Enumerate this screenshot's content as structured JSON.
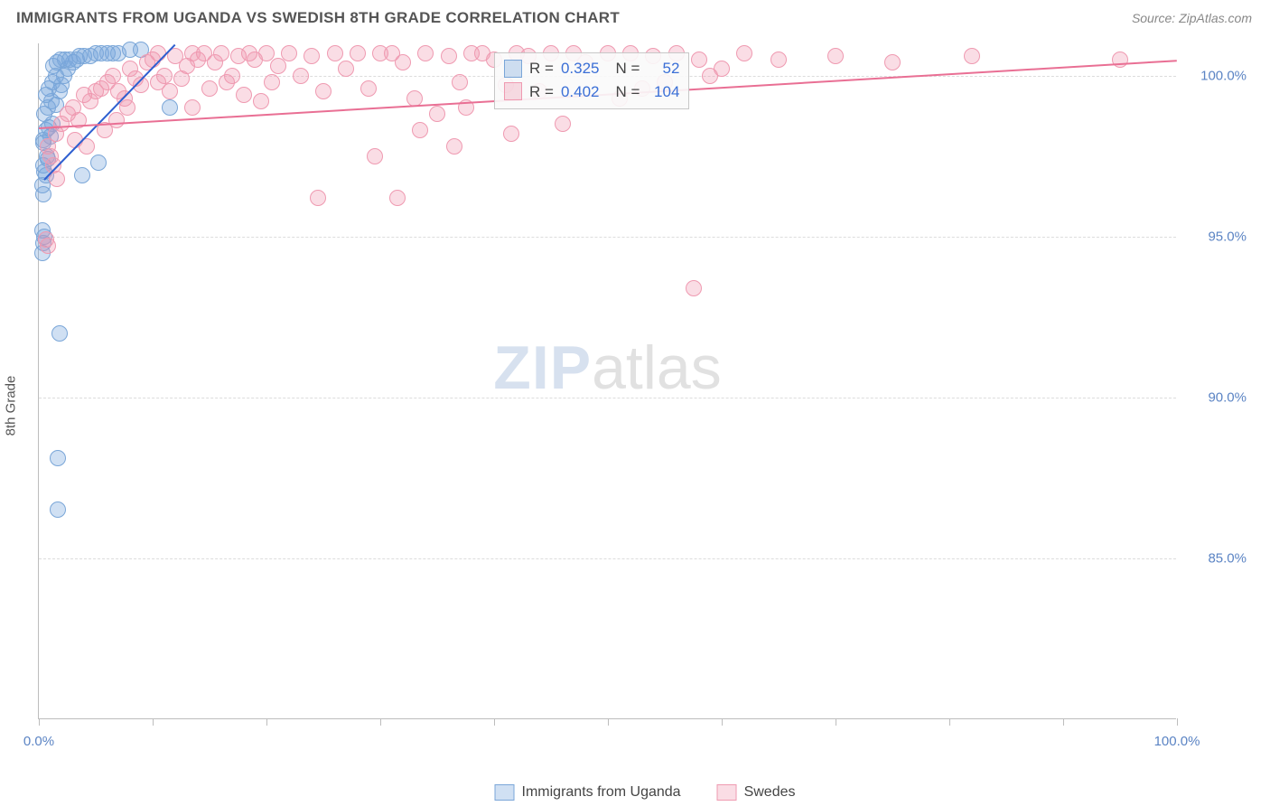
{
  "header": {
    "title": "IMMIGRANTS FROM UGANDA VS SWEDISH 8TH GRADE CORRELATION CHART",
    "source": "Source: ZipAtlas.com"
  },
  "watermark": {
    "part1": "ZIP",
    "part2": "atlas"
  },
  "chart": {
    "type": "scatter",
    "background_color": "#ffffff",
    "grid_color": "#dcdcdc",
    "axis_color": "#bdbdbd",
    "yaxis_title": "8th Grade",
    "label_fontsize": 15,
    "xlim": [
      0,
      100
    ],
    "ylim": [
      80,
      101
    ],
    "x_ticks": [
      0,
      10,
      20,
      30,
      40,
      50,
      60,
      70,
      80,
      90,
      100
    ],
    "x_tick_labels": {
      "0": "0.0%",
      "100": "100.0%"
    },
    "y_ticks": [
      85,
      90,
      95,
      100
    ],
    "y_tick_labels": [
      "85.0%",
      "90.0%",
      "95.0%",
      "100.0%"
    ],
    "series": [
      {
        "key": "uganda",
        "label": "Immigrants from Uganda",
        "color_fill": "rgba(120,165,220,0.35)",
        "color_stroke": "#7aa6d8",
        "trend_color": "#2e5fd0",
        "marker_radius": 9,
        "stats": {
          "R": "0.325",
          "N": "52"
        },
        "trend": {
          "x1": 0.5,
          "y1": 96.8,
          "x2": 12,
          "y2": 101
        },
        "points": [
          [
            0.4,
            97.2
          ],
          [
            0.6,
            96.9
          ],
          [
            0.8,
            97.4
          ],
          [
            0.5,
            97.0
          ],
          [
            0.7,
            97.5
          ],
          [
            0.4,
            98.0
          ],
          [
            0.6,
            98.3
          ],
          [
            0.9,
            98.4
          ],
          [
            1.0,
            98.1
          ],
          [
            1.2,
            98.5
          ],
          [
            0.5,
            98.8
          ],
          [
            0.8,
            99.0
          ],
          [
            1.1,
            99.2
          ],
          [
            1.5,
            99.1
          ],
          [
            1.8,
            99.5
          ],
          [
            2.0,
            99.7
          ],
          [
            2.2,
            100.0
          ],
          [
            2.5,
            100.2
          ],
          [
            3.0,
            100.4
          ],
          [
            3.3,
            100.5
          ],
          [
            3.6,
            100.6
          ],
          [
            4.0,
            100.6
          ],
          [
            4.5,
            100.6
          ],
          [
            5.0,
            100.7
          ],
          [
            5.5,
            100.7
          ],
          [
            6.0,
            100.7
          ],
          [
            6.5,
            100.7
          ],
          [
            7.0,
            100.7
          ],
          [
            8.0,
            100.8
          ],
          [
            9.0,
            100.8
          ],
          [
            1.3,
            100.3
          ],
          [
            1.6,
            100.4
          ],
          [
            1.9,
            100.5
          ],
          [
            2.3,
            100.5
          ],
          [
            2.7,
            100.5
          ],
          [
            0.9,
            99.6
          ],
          [
            1.2,
            99.8
          ],
          [
            1.5,
            100.0
          ],
          [
            0.6,
            99.4
          ],
          [
            0.3,
            96.6
          ],
          [
            0.4,
            96.3
          ],
          [
            0.3,
            95.2
          ],
          [
            0.5,
            95.0
          ],
          [
            0.4,
            94.8
          ],
          [
            0.3,
            94.5
          ],
          [
            0.4,
            97.9
          ],
          [
            3.8,
            96.9
          ],
          [
            5.2,
            97.3
          ],
          [
            1.8,
            92.0
          ],
          [
            1.7,
            88.1
          ],
          [
            1.7,
            86.5
          ],
          [
            11.5,
            99.0
          ]
        ]
      },
      {
        "key": "swedes",
        "label": "Swedes",
        "color_fill": "rgba(240,150,175,0.32)",
        "color_stroke": "#ef9ab1",
        "trend_color": "#e96f94",
        "marker_radius": 9,
        "stats": {
          "R": "0.402",
          "N": "104"
        },
        "trend": {
          "x1": 0,
          "y1": 98.4,
          "x2": 100,
          "y2": 100.5
        },
        "points": [
          [
            1.5,
            98.2
          ],
          [
            2.0,
            98.5
          ],
          [
            2.5,
            98.8
          ],
          [
            3.0,
            99.0
          ],
          [
            3.5,
            98.6
          ],
          [
            4.0,
            99.4
          ],
          [
            4.5,
            99.2
          ],
          [
            5.0,
            99.5
          ],
          [
            5.5,
            99.6
          ],
          [
            6.0,
            99.8
          ],
          [
            6.5,
            100.0
          ],
          [
            7.0,
            99.5
          ],
          [
            7.5,
            99.3
          ],
          [
            8.0,
            100.2
          ],
          [
            8.5,
            99.9
          ],
          [
            9.0,
            99.7
          ],
          [
            9.5,
            100.4
          ],
          [
            10.0,
            100.5
          ],
          [
            10.5,
            99.8
          ],
          [
            11.0,
            100.0
          ],
          [
            11.5,
            99.5
          ],
          [
            12.0,
            100.6
          ],
          [
            12.5,
            99.9
          ],
          [
            13.0,
            100.3
          ],
          [
            13.5,
            99.0
          ],
          [
            14.0,
            100.5
          ],
          [
            14.5,
            100.7
          ],
          [
            15.0,
            99.6
          ],
          [
            15.5,
            100.4
          ],
          [
            16.0,
            100.7
          ],
          [
            16.5,
            99.8
          ],
          [
            17.0,
            100.0
          ],
          [
            17.5,
            100.6
          ],
          [
            18.0,
            99.4
          ],
          [
            18.5,
            100.7
          ],
          [
            19.0,
            100.5
          ],
          [
            19.5,
            99.2
          ],
          [
            20.0,
            100.7
          ],
          [
            20.5,
            99.8
          ],
          [
            21.0,
            100.3
          ],
          [
            22.0,
            100.7
          ],
          [
            23.0,
            100.0
          ],
          [
            24.0,
            100.6
          ],
          [
            25.0,
            99.5
          ],
          [
            26.0,
            100.7
          ],
          [
            27.0,
            100.2
          ],
          [
            28.0,
            100.7
          ],
          [
            29.0,
            99.6
          ],
          [
            30.0,
            100.7
          ],
          [
            31.0,
            100.7
          ],
          [
            32.0,
            100.4
          ],
          [
            33.0,
            99.3
          ],
          [
            34.0,
            100.7
          ],
          [
            35.0,
            98.8
          ],
          [
            36.0,
            100.6
          ],
          [
            37.0,
            99.8
          ],
          [
            38.0,
            100.7
          ],
          [
            39.0,
            100.7
          ],
          [
            40.0,
            100.5
          ],
          [
            41.0,
            99.7
          ],
          [
            42.0,
            100.7
          ],
          [
            43.0,
            100.6
          ],
          [
            44.0,
            99.5
          ],
          [
            45.0,
            100.7
          ],
          [
            46.0,
            98.5
          ],
          [
            47.0,
            100.7
          ],
          [
            48.0,
            100.4
          ],
          [
            50.0,
            100.7
          ],
          [
            52.0,
            100.7
          ],
          [
            54.0,
            100.6
          ],
          [
            56.0,
            100.7
          ],
          [
            58.0,
            100.5
          ],
          [
            60.0,
            100.2
          ],
          [
            62.0,
            100.7
          ],
          [
            65.0,
            100.5
          ],
          [
            70.0,
            100.6
          ],
          [
            75.0,
            100.4
          ],
          [
            82.0,
            100.6
          ],
          [
            95.0,
            100.5
          ],
          [
            24.5,
            96.2
          ],
          [
            31.5,
            96.2
          ],
          [
            36.5,
            97.8
          ],
          [
            41.5,
            98.2
          ],
          [
            57.5,
            93.4
          ],
          [
            0.8,
            97.8
          ],
          [
            1.0,
            97.5
          ],
          [
            1.3,
            97.2
          ],
          [
            1.6,
            96.8
          ],
          [
            0.6,
            94.9
          ],
          [
            0.8,
            94.7
          ],
          [
            3.2,
            98.0
          ],
          [
            4.2,
            97.8
          ],
          [
            5.8,
            98.3
          ],
          [
            6.8,
            98.6
          ],
          [
            7.8,
            99.0
          ],
          [
            29.5,
            97.5
          ],
          [
            33.5,
            98.3
          ],
          [
            37.5,
            99.0
          ],
          [
            51.0,
            99.3
          ],
          [
            53.0,
            99.6
          ],
          [
            55.0,
            99.8
          ],
          [
            59.0,
            100.0
          ],
          [
            10.5,
            100.7
          ],
          [
            13.5,
            100.7
          ]
        ]
      }
    ],
    "legend": {
      "items": [
        {
          "key": "uganda",
          "label": "Immigrants from Uganda"
        },
        {
          "key": "swedes",
          "label": "Swedes"
        }
      ]
    },
    "stats_box": {
      "rows": [
        {
          "key": "uganda",
          "R_label": "R =",
          "N_label": "N ="
        },
        {
          "key": "swedes",
          "R_label": "R =",
          "N_label": "N ="
        }
      ]
    }
  }
}
